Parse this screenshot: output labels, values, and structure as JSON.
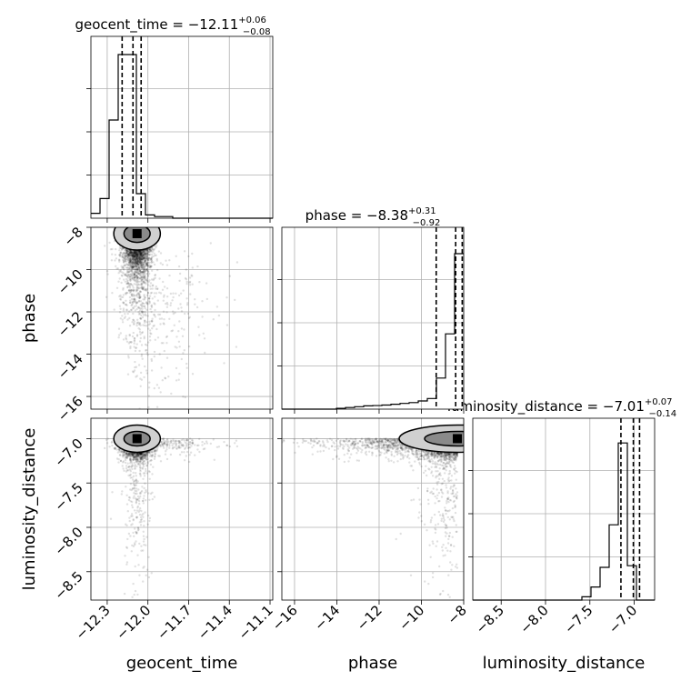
{
  "chart_data": {
    "type": "corner",
    "parameters": [
      "geocent_time",
      "phase",
      "luminosity_distance"
    ],
    "titles": [
      {
        "param": "geocent_time",
        "median": "−12.11",
        "plus": "+0.06",
        "minus": "−0.08"
      },
      {
        "param": "phase",
        "median": "−8.38",
        "plus": "+0.31",
        "minus": "−0.92"
      },
      {
        "param": "luminosity_distance",
        "median": "−7.01",
        "plus": "+0.07",
        "minus": "−0.14"
      }
    ],
    "axis_ranges": {
      "geocent_time": [
        -12.42,
        -11.08
      ],
      "phase": [
        -16.6,
        -8.0
      ],
      "luminosity_distance": [
        -8.82,
        -6.77
      ]
    },
    "ticks": {
      "geocent_time": [
        {
          "v": -12.3,
          "label": "−12.3"
        },
        {
          "v": -12.0,
          "label": "−12.0"
        },
        {
          "v": -11.7,
          "label": "−11.7"
        },
        {
          "v": -11.4,
          "label": "−11.4"
        },
        {
          "v": -11.1,
          "label": "−11.1"
        }
      ],
      "phase": [
        {
          "v": -16,
          "label": "−16"
        },
        {
          "v": -14,
          "label": "−14"
        },
        {
          "v": -12,
          "label": "−12"
        },
        {
          "v": -10,
          "label": "−10"
        },
        {
          "v": -8,
          "label": "−8"
        }
      ],
      "luminosity_distance": [
        {
          "v": -8.5,
          "label": "−8.5"
        },
        {
          "v": -8.0,
          "label": "−8.0"
        },
        {
          "v": -7.5,
          "label": "−7.5"
        },
        {
          "v": -7.0,
          "label": "−7.0"
        }
      ]
    },
    "histograms": {
      "geocent_time": {
        "edges": [
          -12.42,
          -12.353,
          -12.286,
          -12.219,
          -12.152,
          -12.085,
          -12.018,
          -11.951,
          -11.884,
          -11.817,
          -11.75,
          -11.683,
          -11.616,
          -11.549,
          -11.482,
          -11.415,
          -11.348,
          -11.281,
          -11.214,
          -11.147,
          -11.08
        ],
        "counts": [
          0.03,
          0.12,
          0.6,
          1.0,
          1.0,
          0.15,
          0.02,
          0.01,
          0.01,
          0.0,
          0.0,
          0.0,
          0.0,
          0.0,
          0.0,
          0.0,
          0.0,
          0.0,
          0.0,
          0.0
        ],
        "quantiles": [
          -12.19,
          -12.11,
          -12.05
        ]
      },
      "phase": {
        "edges": [
          -16.6,
          -16.17,
          -15.74,
          -15.31,
          -14.88,
          -14.45,
          -14.02,
          -13.59,
          -13.16,
          -12.73,
          -12.3,
          -11.87,
          -11.44,
          -11.01,
          -10.58,
          -10.15,
          -9.72,
          -9.29,
          -8.86,
          -8.43,
          -8.0
        ],
        "counts": [
          0.0,
          0.0,
          0.0,
          0.0,
          0.0,
          0.0,
          0.005,
          0.01,
          0.015,
          0.02,
          0.022,
          0.025,
          0.03,
          0.035,
          0.04,
          0.05,
          0.065,
          0.19,
          0.46,
          0.95
        ],
        "quantiles": [
          -9.3,
          -8.38,
          -8.07
        ]
      },
      "luminosity_distance": {
        "edges": [
          -8.82,
          -8.7175,
          -8.615,
          -8.5125,
          -8.41,
          -8.3075,
          -8.205,
          -8.1025,
          -8.0,
          -7.8975,
          -7.795,
          -7.6925,
          -7.59,
          -7.4875,
          -7.385,
          -7.2825,
          -7.18,
          -7.0775,
          -6.975,
          -6.8725,
          -6.77
        ],
        "counts": [
          0.0,
          0.0,
          0.0,
          0.0,
          0.0,
          0.0,
          0.0,
          0.0,
          0.0,
          0.0,
          0.0,
          0.0,
          0.02,
          0.08,
          0.2,
          0.46,
          0.96,
          0.21,
          0.0,
          0.0
        ],
        "quantiles": [
          -7.15,
          -7.01,
          -6.94
        ]
      }
    },
    "posterior_peak": {
      "geocent_time": -12.08,
      "phase": -8.3,
      "luminosity_distance": -7.0
    },
    "scatter_samples": 3000,
    "grid": true
  },
  "axes": {
    "xlabels": [
      "geocent_time",
      "phase",
      "luminosity_distance"
    ],
    "ylabels": [
      "phase",
      "luminosity_distance"
    ]
  }
}
